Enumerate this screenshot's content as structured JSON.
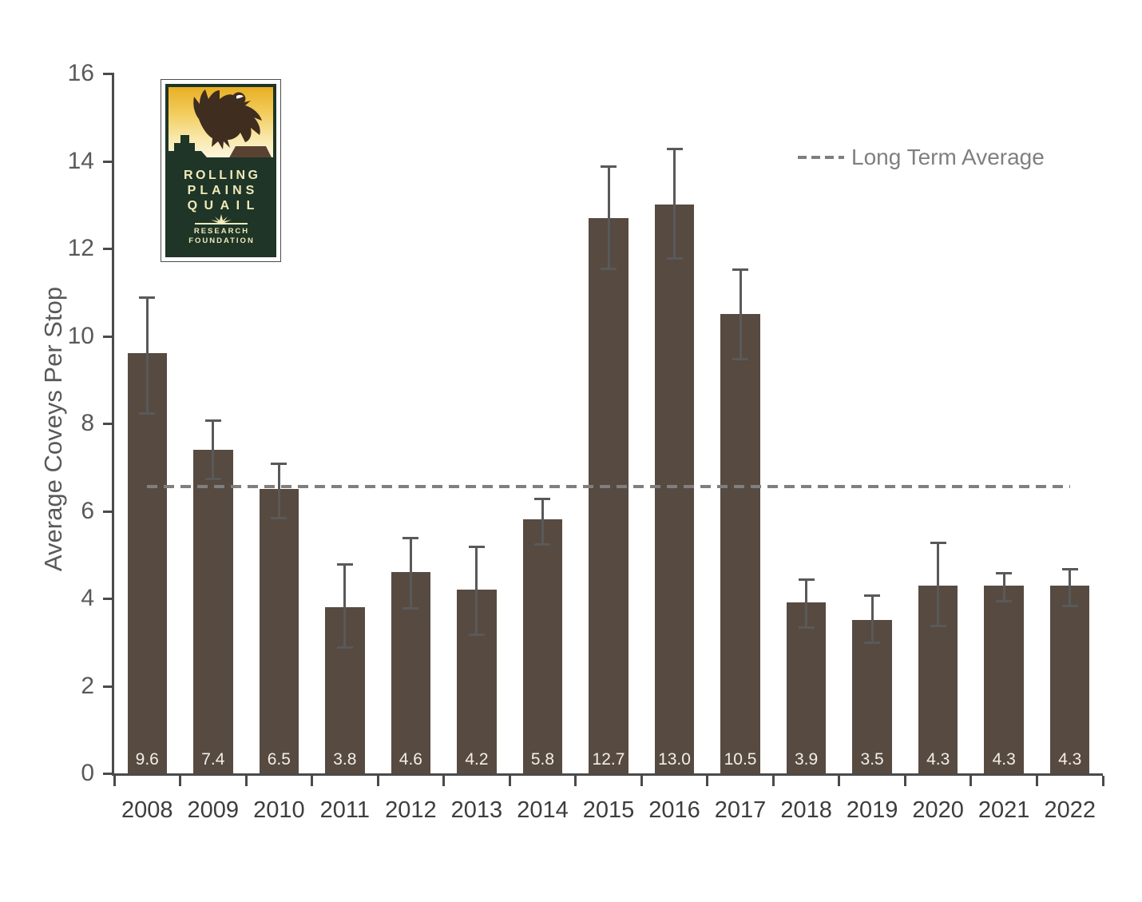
{
  "logo": {
    "line1": "ROLLING",
    "line2": "PLAINS",
    "line3": "QUAIL",
    "sub1": "RESEARCH",
    "sub2": "FOUNDATION",
    "colors": {
      "frame_green": "#1e3527",
      "sky_top": "#e9af24",
      "sky_bottom": "#fdf9ec",
      "bird_brown": "#3f2d20",
      "mesa_brown": "#5a4233",
      "text_cream": "#f0e9b8"
    }
  },
  "legend": {
    "label": "Long Term Average",
    "color": "#7f7f7f"
  },
  "chart_data": {
    "type": "bar",
    "title": "",
    "xlabel": "",
    "ylabel": "Average Coveys Per Stop",
    "ylim": [
      0,
      16
    ],
    "ytick_step": 2,
    "grid": false,
    "legend_position": "top-right",
    "categories": [
      "2008",
      "2009",
      "2010",
      "2011",
      "2012",
      "2013",
      "2014",
      "2015",
      "2016",
      "2017",
      "2018",
      "2019",
      "2020",
      "2021",
      "2022"
    ],
    "values": [
      9.6,
      7.4,
      6.5,
      3.8,
      4.6,
      4.2,
      5.8,
      12.7,
      13.0,
      10.5,
      3.9,
      3.5,
      4.3,
      4.3,
      4.3
    ],
    "value_labels": [
      "9.6",
      "7.4",
      "6.5",
      "3.8",
      "4.6",
      "4.2",
      "5.8",
      "12.7",
      "13.0",
      "10.5",
      "3.9",
      "3.5",
      "4.3",
      "4.3",
      "4.3"
    ],
    "error_low": [
      8.2,
      6.7,
      5.8,
      2.85,
      3.75,
      3.15,
      5.2,
      11.5,
      11.75,
      9.45,
      3.3,
      2.95,
      3.35,
      3.9,
      3.8
    ],
    "error_high": [
      10.9,
      8.1,
      7.1,
      4.8,
      5.4,
      5.2,
      6.3,
      13.9,
      14.3,
      11.55,
      4.45,
      4.1,
      5.3,
      4.6,
      4.7
    ],
    "long_term_average": 6.55,
    "colors": {
      "bar": "#574a41",
      "error_bar": "#595959",
      "axis": "#4a4a4a",
      "y_tick_label": "#595959",
      "x_tick_label": "#3d3d3d",
      "value_label": "#f2eee8",
      "avg_line": "#7f7f7f"
    }
  }
}
